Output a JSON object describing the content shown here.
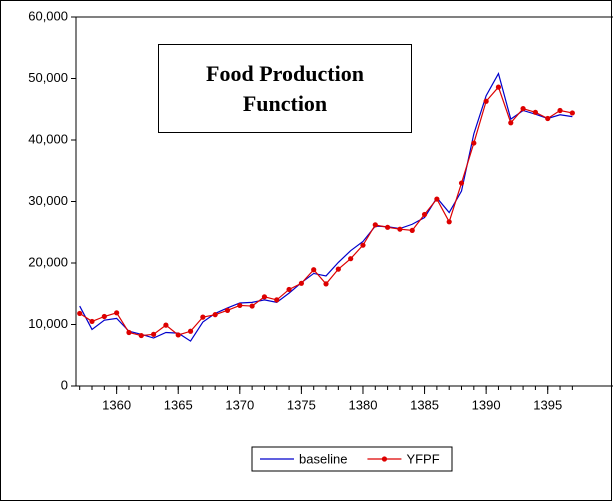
{
  "chart_data": {
    "type": "line",
    "title": "Food Production Function",
    "x": [
      1357,
      1358,
      1359,
      1360,
      1361,
      1362,
      1363,
      1364,
      1365,
      1366,
      1367,
      1368,
      1369,
      1370,
      1371,
      1372,
      1373,
      1374,
      1375,
      1376,
      1377,
      1378,
      1379,
      1380,
      1381,
      1382,
      1383,
      1384,
      1385,
      1386,
      1387,
      1388,
      1389,
      1390,
      1391,
      1392,
      1393,
      1394,
      1395,
      1396,
      1397
    ],
    "series": [
      {
        "name": "baseline",
        "color": "#0000cc",
        "markers": false,
        "values": [
          13000,
          9200,
          10700,
          11000,
          8900,
          8400,
          7800,
          8700,
          8600,
          7300,
          10400,
          11800,
          12700,
          13500,
          13600,
          14000,
          13600,
          15100,
          16800,
          18300,
          17900,
          20100,
          22000,
          23500,
          26000,
          25900,
          25600,
          26300,
          27400,
          30600,
          28200,
          31700,
          41000,
          47200,
          50800,
          43400,
          44800,
          44200,
          43500,
          44100,
          43800
        ]
      },
      {
        "name": "YFPF",
        "color": "#dd0000",
        "markers": true,
        "values": [
          11800,
          10500,
          11300,
          11900,
          8700,
          8200,
          8400,
          9900,
          8300,
          8900,
          11200,
          11600,
          12300,
          13100,
          13000,
          14500,
          14000,
          15700,
          16700,
          18900,
          16600,
          19000,
          20700,
          22900,
          26200,
          25800,
          25500,
          25300,
          27900,
          30400,
          26700,
          33000,
          39500,
          46300,
          48600,
          42800,
          45100,
          44500,
          43500,
          44800,
          44400
        ]
      }
    ],
    "xlim": [
      1356.7,
      1400.3
    ],
    "xticks": [
      1360,
      1365,
      1370,
      1375,
      1380,
      1385,
      1390,
      1395
    ],
    "ylim": [
      0,
      60000
    ],
    "yticks": [
      0,
      {
        "value": 10000,
        "label": "10,000"
      },
      {
        "value": 20000,
        "label": "20,000"
      },
      {
        "value": 30000,
        "label": "30,000"
      },
      {
        "value": 40000,
        "label": "40,000"
      },
      {
        "value": 50000,
        "label": "50,000"
      },
      {
        "value": 60000,
        "label": "60,000"
      }
    ]
  }
}
